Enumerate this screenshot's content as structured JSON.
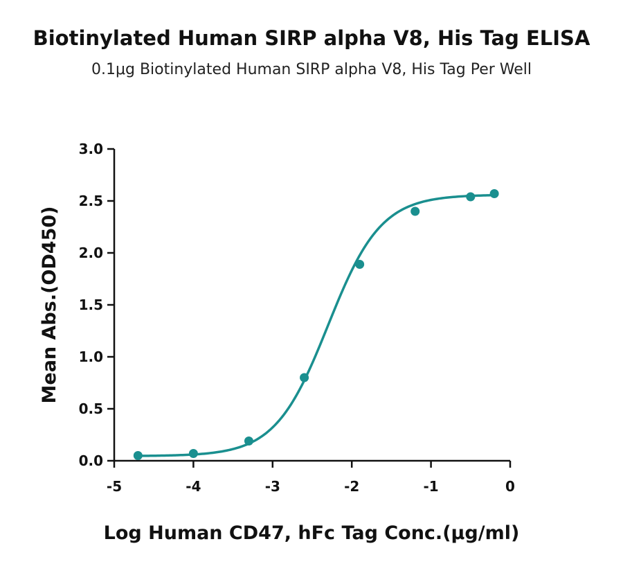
{
  "chart_data": {
    "type": "line",
    "title": "Biotinylated Human SIRP alpha V8, His Tag ELISA",
    "subtitle": "0.1μg Biotinylated Human SIRP alpha V8, His Tag Per Well",
    "xlabel": "Log Human CD47, hFc  Tag Conc.(μg/ml)",
    "ylabel": "Mean Abs.(OD450)",
    "xlim": [
      -5,
      0
    ],
    "ylim": [
      0,
      3.0
    ],
    "x_ticks": [
      -5,
      -4,
      -3,
      -2,
      -1,
      0
    ],
    "x_tick_labels": [
      "-5",
      "-4",
      "-3",
      "-2",
      "-1",
      "0"
    ],
    "y_ticks": [
      0,
      0.5,
      1.0,
      1.5,
      2.0,
      2.5,
      3.0
    ],
    "y_tick_labels": [
      "0.0",
      "0.5",
      "1.0",
      "1.5",
      "2.0",
      "2.5",
      "3.0"
    ],
    "grid": false,
    "color": "#1a8f8f",
    "series": [
      {
        "x": [
          -4.7,
          -4.0,
          -3.3,
          -2.6,
          -1.9,
          -1.2,
          -0.5,
          -0.2
        ],
        "y": [
          0.05,
          0.07,
          0.19,
          0.8,
          1.89,
          2.4,
          2.54,
          2.57
        ]
      }
    ],
    "fit": {
      "bottom": 0.045,
      "top": 2.56,
      "logEC50": -2.3,
      "hill": 1.3
    }
  }
}
